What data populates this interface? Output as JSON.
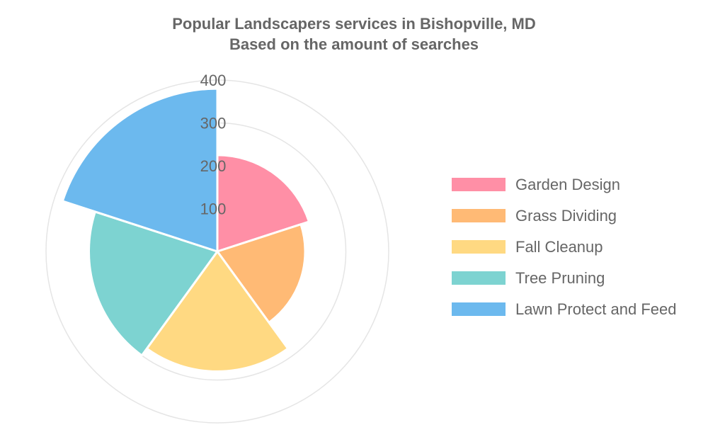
{
  "title_lines": [
    "Popular Landscapers services in Bishopville, MD",
    "Based on the amount of searches"
  ],
  "chart_data": {
    "type": "polarArea",
    "title": "Popular Landscapers services in Bishopville, MD",
    "subtitle": "Based on the amount of searches",
    "categories": [
      "Garden Design",
      "Grass Dividing",
      "Fall Cleanup",
      "Tree Pruning",
      "Lawn Protect and Feed"
    ],
    "values": [
      225,
      205,
      280,
      300,
      380
    ],
    "colors": [
      "#ff8fa6",
      "#ffba75",
      "#ffd982",
      "#7dd3d1",
      "#6cb9ee"
    ],
    "radial_axis": {
      "min": 0,
      "max": 400,
      "ticks": [
        100,
        200,
        300,
        400
      ],
      "tick_labels": [
        "100",
        "200",
        "300",
        "400"
      ]
    },
    "grid": true,
    "legend_position": "right"
  }
}
